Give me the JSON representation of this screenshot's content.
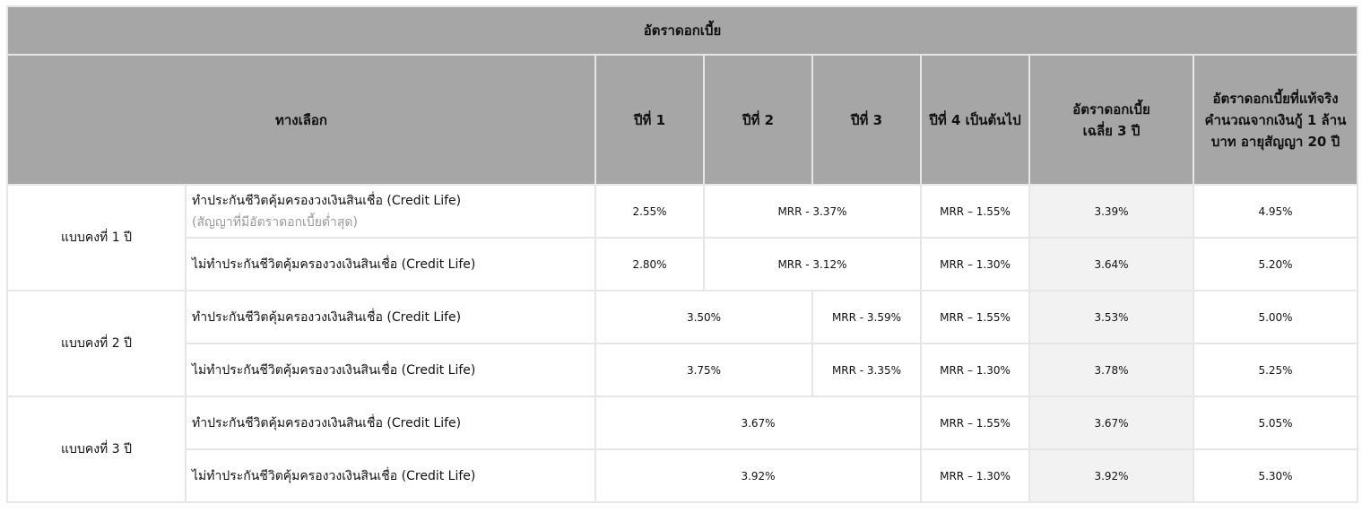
{
  "title": "อัตราดอกเบี้ย",
  "headers": {
    "option": "ทางเลือก",
    "year1": "ปีที่ 1",
    "year2": "ปีที่ 2",
    "year3": "ปีที่ 3",
    "year4": "ปีที่ 4 เป็นต้นไป",
    "avg_line1": "อัตราดอกเบี้ย",
    "avg_line2": "เฉลี่ย 3 ปี",
    "eff_line1": "อัตราดอกเบี้ยที่แท้จริง",
    "eff_line2": "คำนวณจากเงินกู้ 1 ล้าน",
    "eff_line3": "บาท อายุสัญญา 20 ปี"
  },
  "plans": [
    {
      "label": "แบบคงที่ 1 ปี",
      "rows": [
        {
          "option": "ทำประกันชีวิตคุ้มครองวงเงินสินเชื่อ (Credit Life)",
          "note": "(สัญญาที่มีอัตราดอกเบี้ยต่ำสุด)",
          "year1": "2.55%",
          "year2_3": "MRR - 3.37%",
          "year4": "MRR – 1.55%",
          "avg3": "3.39%",
          "effective": "4.95%"
        },
        {
          "option": "ไม่ทำประกันชีวิตคุ้มครองวงเงินสินเชื่อ (Credit Life)",
          "year1": "2.80%",
          "year2_3": "MRR - 3.12%",
          "year4": "MRR – 1.30%",
          "avg3": "3.64%",
          "effective": "5.20%"
        }
      ]
    },
    {
      "label": "แบบคงที่ 2 ปี",
      "rows": [
        {
          "option": "ทำประกันชีวิตคุ้มครองวงเงินสินเชื่อ (Credit Life)",
          "year1_2": "3.50%",
          "year3": "MRR - 3.59%",
          "year4": "MRR – 1.55%",
          "avg3": "3.53%",
          "effective": "5.00%"
        },
        {
          "option": "ไม่ทำประกันชีวิตคุ้มครองวงเงินสินเชื่อ (Credit Life)",
          "year1_2": "3.75%",
          "year3": "MRR - 3.35%",
          "year4": "MRR – 1.30%",
          "avg3": "3.78%",
          "effective": "5.25%"
        }
      ]
    },
    {
      "label": "แบบคงที่ 3 ปี",
      "rows": [
        {
          "option": "ทำประกันชีวิตคุ้มครองวงเงินสินเชื่อ (Credit Life)",
          "year1_3": "3.67%",
          "year4": "MRR – 1.55%",
          "avg3": "3.67%",
          "effective": "5.05%"
        },
        {
          "option": "ไม่ทำประกันชีวิตคุ้มครองวงเงินสินเชื่อ (Credit Life)",
          "year1_3": "3.92%",
          "year4": "MRR – 1.30%",
          "avg3": "3.92%",
          "effective": "5.30%"
        }
      ]
    }
  ]
}
